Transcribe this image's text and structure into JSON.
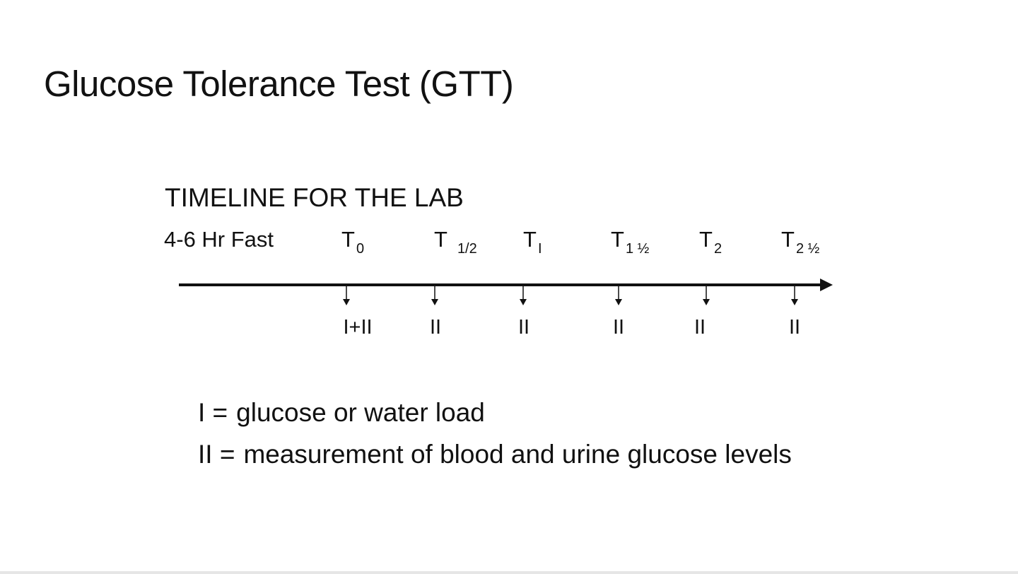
{
  "slide": {
    "title": "Glucose Tolerance Test (GTT)"
  },
  "timeline": {
    "heading": "TIMELINE FOR THE LAB",
    "fast_label": "4-6 Hr Fast",
    "points": [
      {
        "base": "T",
        "sub": "0",
        "action": "I+II"
      },
      {
        "base": "T",
        "sub": "1/2",
        "action": "II"
      },
      {
        "base": "T",
        "sub": "I",
        "action": "II"
      },
      {
        "base": "T",
        "sub": "1 ½",
        "action": "II"
      },
      {
        "base": "T",
        "sub": "2",
        "action": "II"
      },
      {
        "base": "T",
        "sub": "2 ½",
        "action": "II"
      }
    ]
  },
  "legend": {
    "items": [
      {
        "key": "I =",
        "text": "glucose or water load"
      },
      {
        "key": "II =",
        "text": "measurement of blood and urine glucose levels"
      }
    ]
  }
}
